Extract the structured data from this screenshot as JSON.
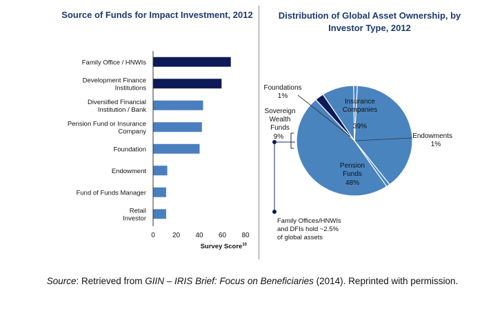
{
  "chart_data": [
    {
      "type": "bar",
      "orientation": "horizontal",
      "title": "Source of Funds for Impact Investment, 2012",
      "xlabel": "Survey Score",
      "xlabel_superscript": "10",
      "xlim": [
        0,
        80
      ],
      "xticks": [
        "0",
        "20",
        "40",
        "60",
        "80"
      ],
      "categories": [
        [
          "Family Office / HNWIs"
        ],
        [
          "Development Finance",
          "Institutions"
        ],
        [
          "Diversified Financial",
          "Institution / Bank"
        ],
        [
          "Pension Fund or Insurance",
          "Company"
        ],
        [
          "Foundation"
        ],
        [
          "Endowment"
        ],
        [
          "Fund of Funds Manager"
        ],
        [
          "Retail",
          "Investor"
        ]
      ],
      "values": [
        67,
        59,
        43,
        42,
        40,
        12,
        11,
        11
      ],
      "colors": [
        "#0d1a57",
        "#0d1a57",
        "#4a7fbf",
        "#4a7fbf",
        "#4a7fbf",
        "#4a7fbf",
        "#4a7fbf",
        "#4a7fbf"
      ]
    },
    {
      "type": "pie",
      "title": "Distribution of Global Asset Ownership, by Investor Type, 2012",
      "slices": [
        {
          "label": "Insurance Companies",
          "value": 39,
          "text": "39%",
          "color": "#4a84bf"
        },
        {
          "label": "Endowments",
          "value": 1,
          "text": "1%",
          "color": "#4a84bf"
        },
        {
          "label": "Pension Funds",
          "value": 48,
          "text": "48%",
          "color": "#4a84bf"
        },
        {
          "label": "Family Offices/HNWIs and DFIs",
          "value": 2.5,
          "text": "",
          "color": "#0d1a57"
        },
        {
          "label": "Sovereign Wealth Funds",
          "value": 9,
          "text": "9%",
          "color": "#4a84bf"
        },
        {
          "label": "Foundations",
          "value": 1,
          "text": "1%",
          "color": "#4a84bf"
        }
      ],
      "labels": {
        "insurance": [
          "Insurance",
          "Companies"
        ],
        "insurance_pct": "39%",
        "pension": [
          "Pension",
          "Funds"
        ],
        "pension_pct": "48%",
        "endowments": "Endowments",
        "endowments_pct": "1%",
        "foundations": "Foundations",
        "foundations_pct": "1%",
        "sovereign": [
          "Sovereign",
          "Wealth",
          "Funds"
        ],
        "sovereign_pct": "9%",
        "family_note": [
          "Family Offices/HNWIs",
          "and DFIs hold ~2.5%",
          "of global assets"
        ]
      }
    }
  ],
  "titles": {
    "left": "Source of Funds for Impact Investment, 2012",
    "right_line1": "Distribution of Global Asset Ownership, by",
    "right_line2": "Investor Type, 2012"
  },
  "source": {
    "prefix": "Source",
    "colon": ": Retrieved from ",
    "ref": "GIIN – IRIS Brief: Focus on Beneficiaries",
    "suffix": " (2014). Reprinted with permission."
  }
}
